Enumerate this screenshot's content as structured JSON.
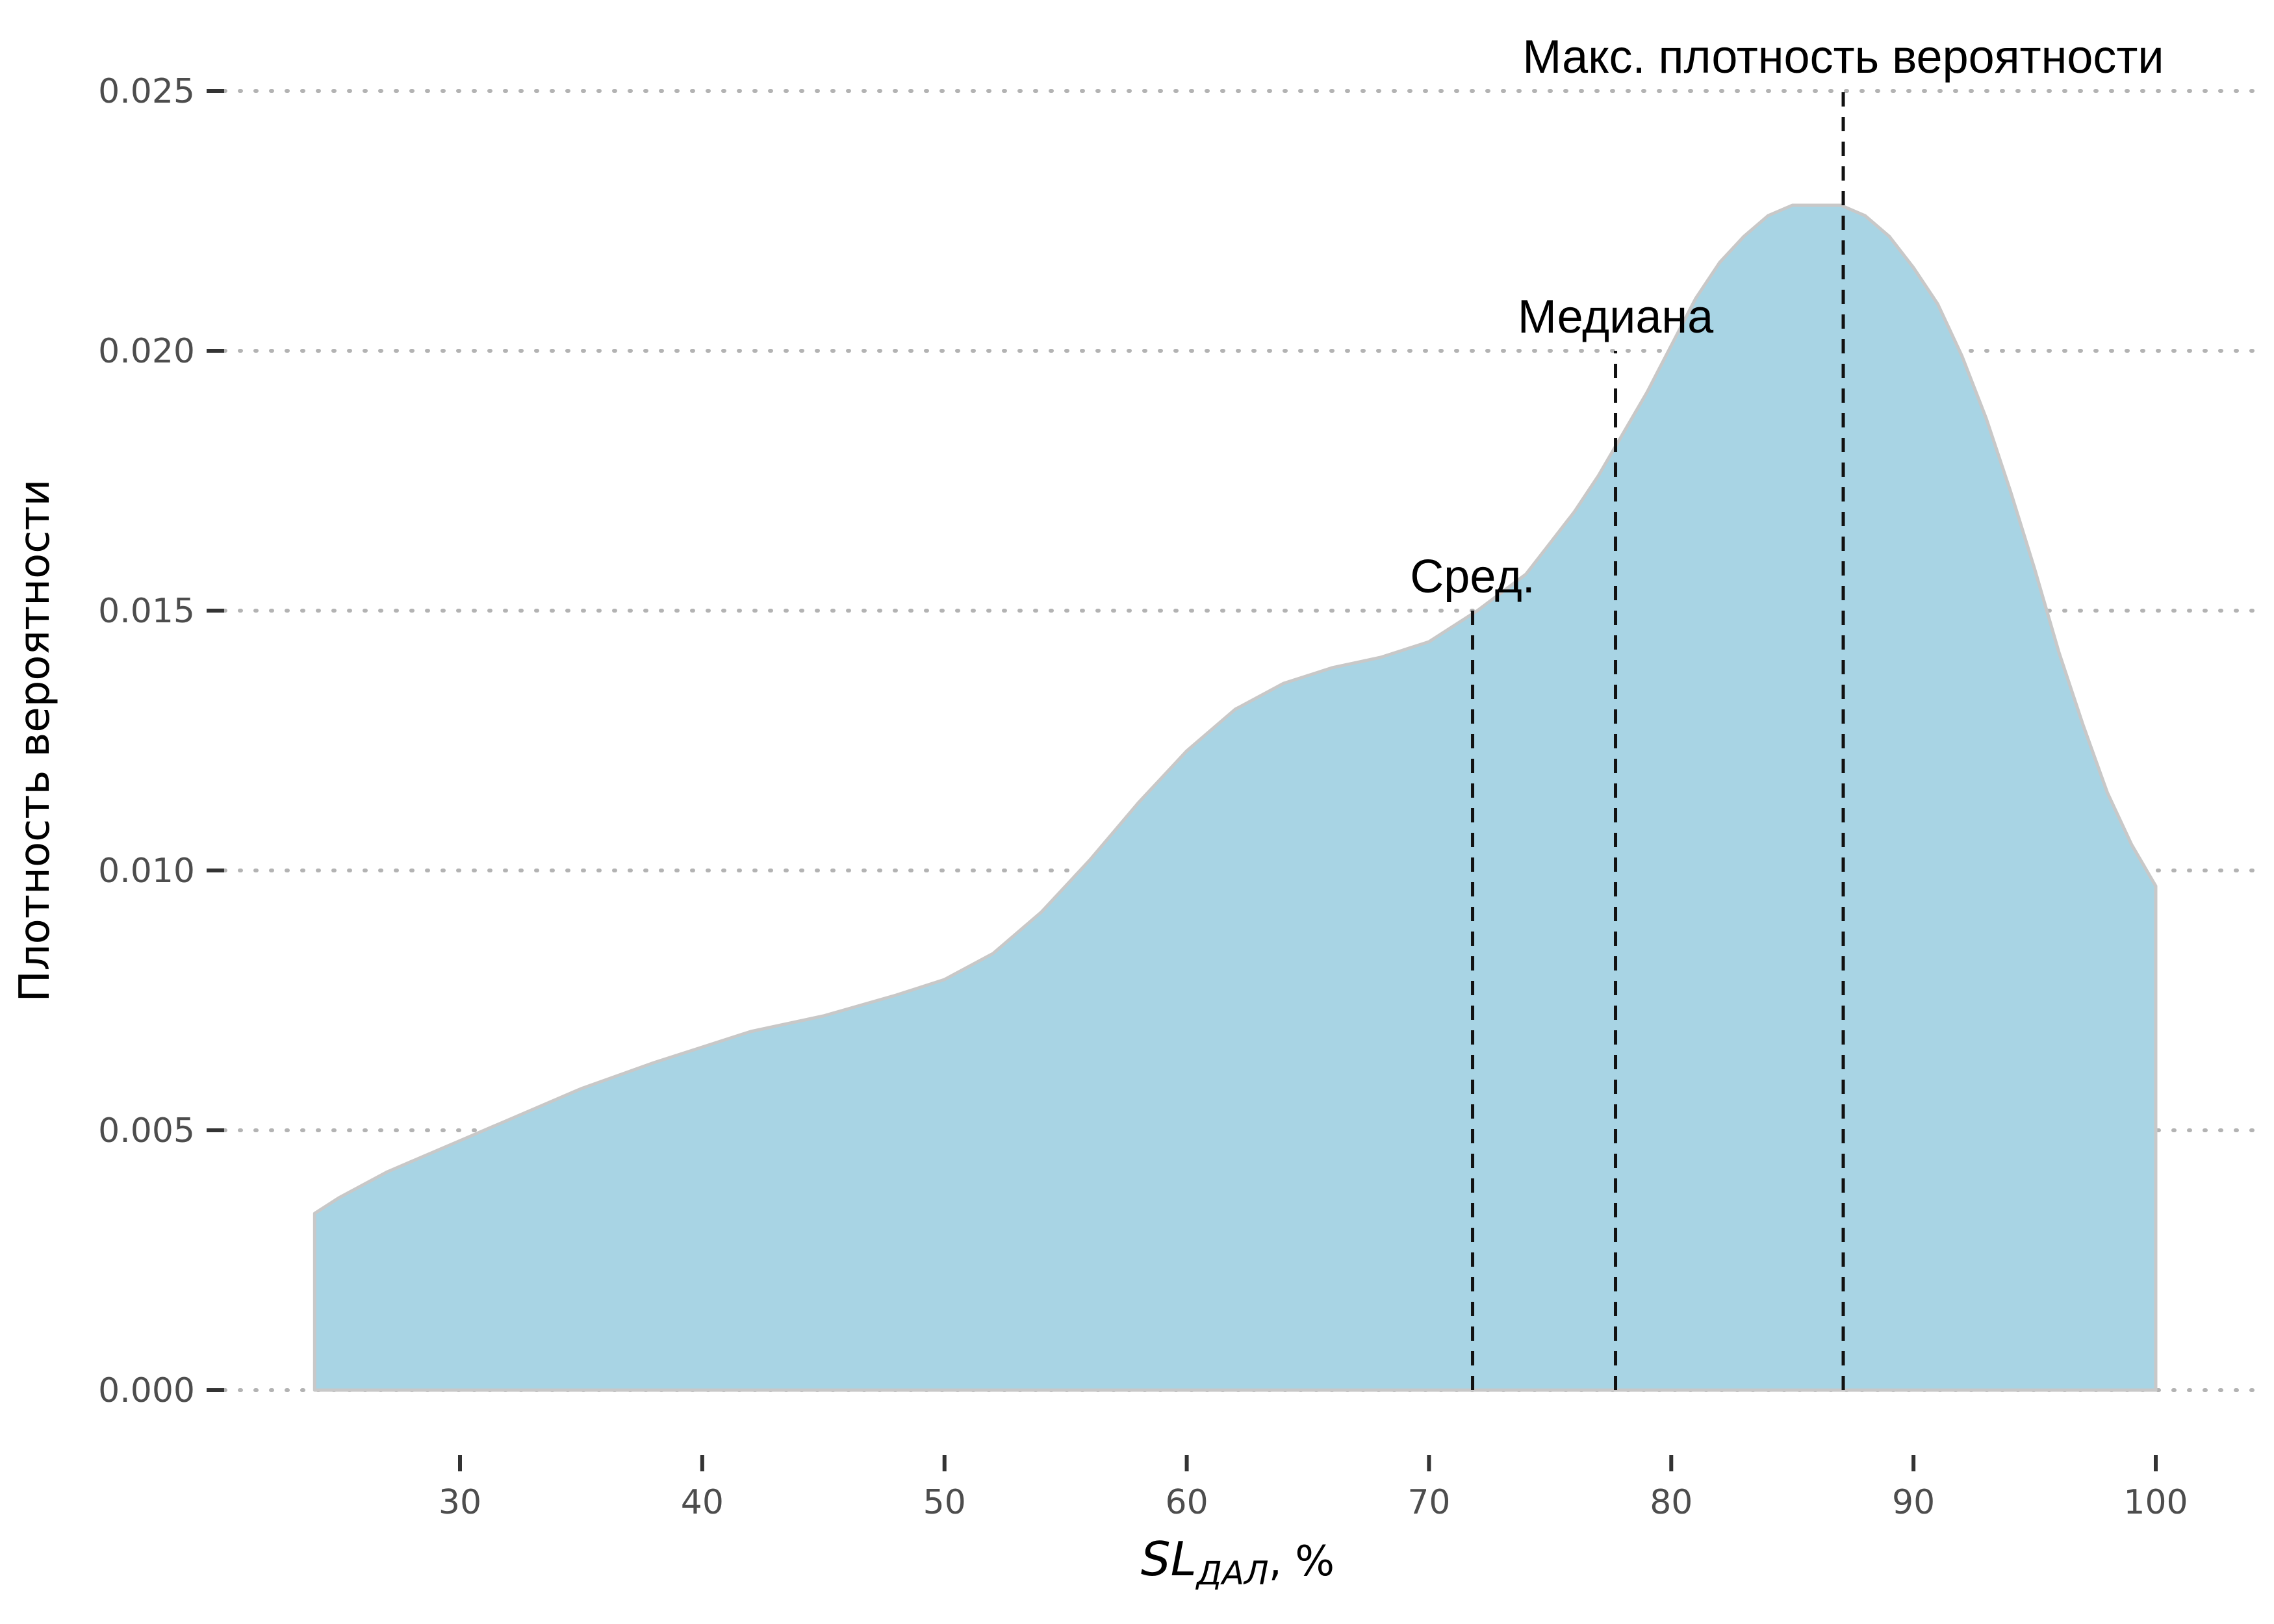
{
  "chart_data": {
    "type": "area",
    "xlabel_main": "SL",
    "xlabel_sub": "ДАЛ",
    "xlabel_suffix": ", %",
    "ylabel": "Плотность вероятности",
    "xlim": [
      24,
      100
    ],
    "ylim": [
      0,
      0.025
    ],
    "x_ticks": [
      30,
      40,
      50,
      60,
      70,
      80,
      90,
      100
    ],
    "x_tick_labels": [
      "30",
      "40",
      "50",
      "60",
      "70",
      "80",
      "90",
      "100"
    ],
    "y_ticks": [
      0,
      0.005,
      0.01,
      0.015,
      0.02,
      0.025
    ],
    "y_tick_labels": [
      "0.000",
      "0.005",
      "0.010",
      "0.015",
      "0.020",
      "0.025"
    ],
    "grid": "horizontal dotted",
    "fill_color": "#a8d4e4",
    "outline_color": "#c8c8c8",
    "series": [
      {
        "x": [
          24,
          25,
          27,
          30,
          32,
          35,
          38,
          40,
          42,
          45,
          48,
          50,
          52,
          54,
          56,
          58,
          60,
          62,
          64,
          66,
          68,
          70,
          72,
          74,
          75,
          76,
          77,
          78,
          79,
          80,
          81,
          82,
          83,
          84,
          85,
          86,
          87,
          88,
          89,
          90,
          91,
          92,
          93,
          94,
          95,
          96,
          97,
          98,
          99,
          100
        ],
        "y": [
          0.0034,
          0.0037,
          0.0042,
          0.0048,
          0.0052,
          0.0058,
          0.0063,
          0.0066,
          0.0069,
          0.0072,
          0.0076,
          0.0079,
          0.0084,
          0.0092,
          0.0102,
          0.0113,
          0.0123,
          0.0131,
          0.0136,
          0.0139,
          0.0141,
          0.0144,
          0.015,
          0.0157,
          0.0163,
          0.0169,
          0.0176,
          0.0184,
          0.0192,
          0.0201,
          0.021,
          0.0217,
          0.0222,
          0.0226,
          0.0228,
          0.0228,
          0.0228,
          0.0226,
          0.0222,
          0.0216,
          0.0209,
          0.0199,
          0.0187,
          0.0173,
          0.0158,
          0.0142,
          0.0128,
          0.0115,
          0.0105,
          0.0097
        ]
      }
    ],
    "annotations": [
      {
        "label": "Сред.",
        "x": 71.8,
        "y_top": 0.015
      },
      {
        "label": "Медиана",
        "x": 77.7,
        "y_top": 0.02
      },
      {
        "label": "Макс. плотность вероятности",
        "x": 87.1,
        "y_top": 0.025
      }
    ]
  }
}
